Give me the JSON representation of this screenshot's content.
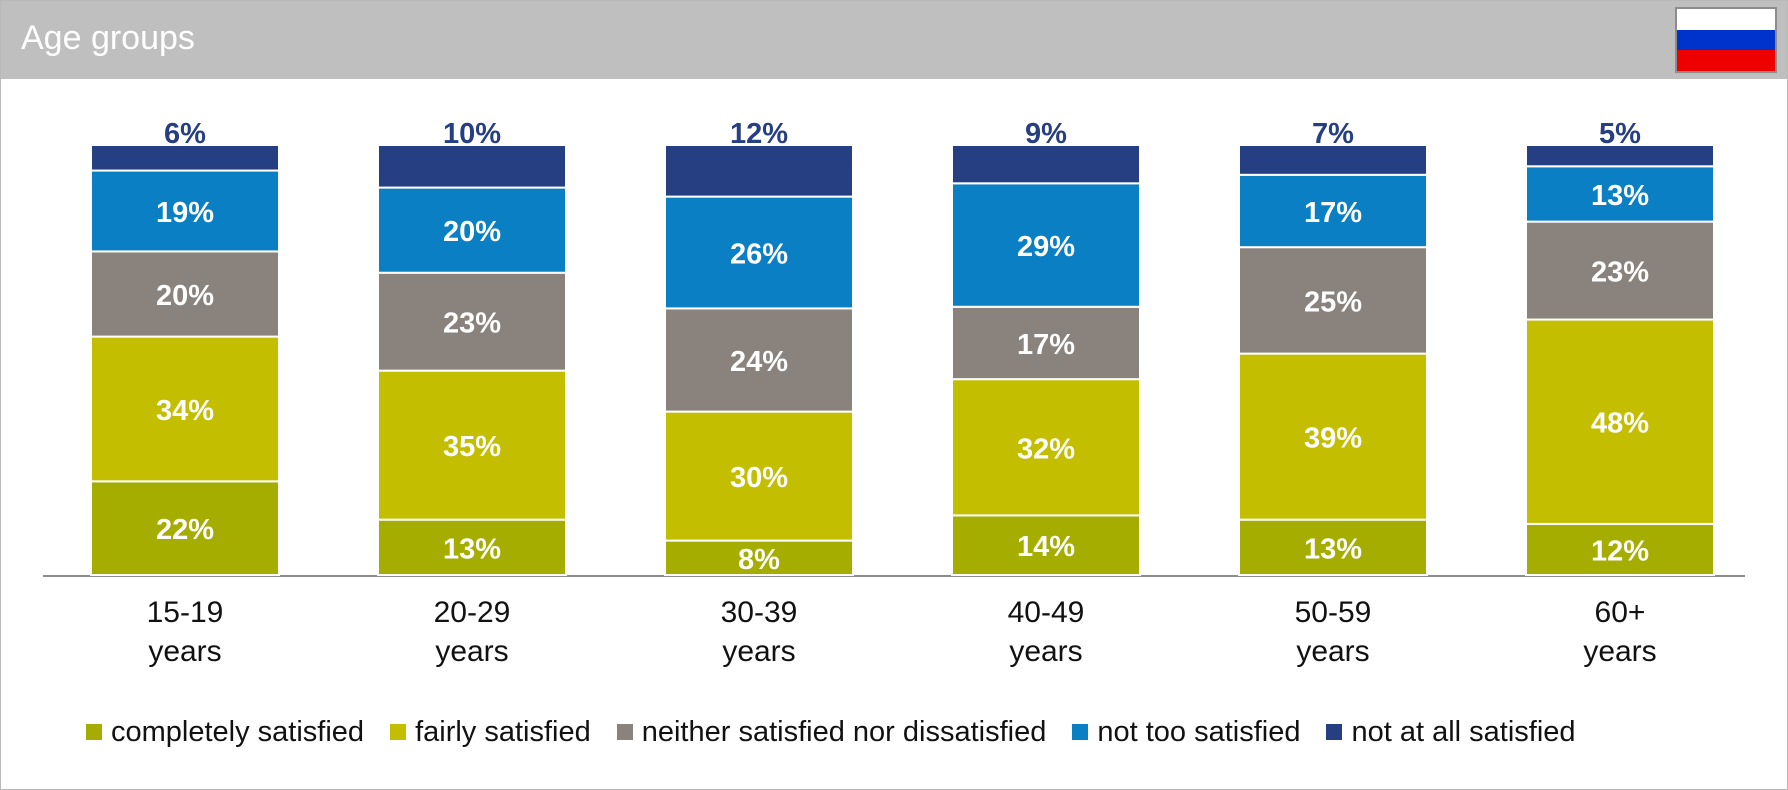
{
  "header": {
    "title": "Age groups"
  },
  "flag": {
    "colors": [
      "#ffffff",
      "#0033cc",
      "#ee0000"
    ]
  },
  "chart_data": {
    "type": "bar",
    "stacked": true,
    "title": "",
    "categories": [
      "15-19\nyears",
      "20-29\nyears",
      "30-39\nyears",
      "40-49\nyears",
      "50-59\nyears",
      "60+\nyears"
    ],
    "series": [
      {
        "name": "completely satisfied",
        "color": "#a4ad00",
        "values": [
          22,
          13,
          8,
          14,
          13,
          12
        ]
      },
      {
        "name": "fairly satisfied",
        "color": "#c4be00",
        "values": [
          34,
          35,
          30,
          32,
          39,
          48
        ]
      },
      {
        "name": "neither satisfied nor dissatisfied",
        "color": "#8a827c",
        "values": [
          20,
          23,
          24,
          17,
          25,
          23
        ]
      },
      {
        "name": "not too satisfied",
        "color": "#0a7fc4",
        "values": [
          19,
          20,
          26,
          29,
          17,
          13
        ]
      },
      {
        "name": "not at all satisfied",
        "color": "#263e82",
        "values": [
          6,
          10,
          12,
          9,
          7,
          5
        ]
      }
    ],
    "value_suffix": "%",
    "legend_position": "bottom",
    "grid": false
  }
}
